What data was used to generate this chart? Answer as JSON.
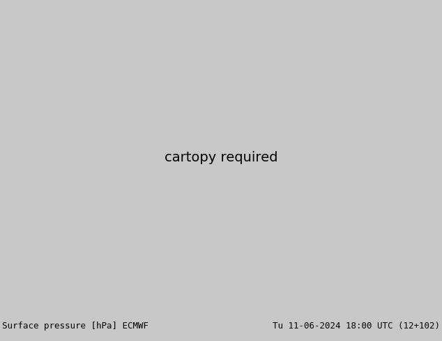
{
  "title_left": "Surface pressure [hPa] ECMWF",
  "title_right": "Tu 11-06-2024 18:00 UTC (12+102)",
  "title_fontsize": 9,
  "fig_width": 6.34,
  "fig_height": 4.9,
  "dpi": 100,
  "bottom_bar_color": "#c8c8c8",
  "ocean_color": "#b0cfe0",
  "land_color": "#e8dfc0",
  "land_green_color": "#c8d8a0",
  "land_tan_color": "#d8c898",
  "plateau_outer": "#c89060",
  "plateau_mid": "#b87840",
  "plateau_inner": "#a06030",
  "red_fill": "#d04030",
  "contour_blue": "#1414cc",
  "contour_black": "#000000",
  "contour_red": "#cc1010",
  "label_fs": 5.5,
  "lon_min": 20,
  "lon_max": 160,
  "lat_min": 0,
  "lat_max": 80
}
